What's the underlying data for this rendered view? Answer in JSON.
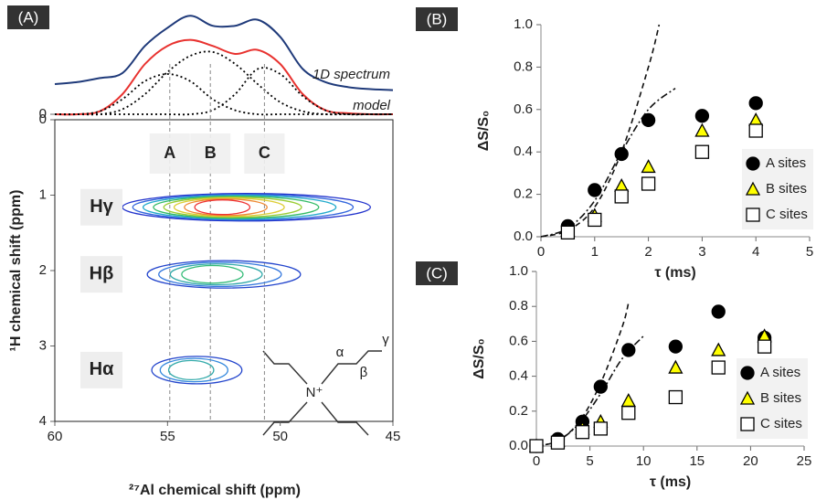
{
  "chart_data": [
    {
      "type": "contour",
      "panel_label": "(A)",
      "xlabel": "²⁷Al chemical shift (ppm)",
      "ylabel": "¹H chemical shift (ppm)",
      "xlim": [
        60,
        45
      ],
      "xticks": [
        60,
        55,
        50,
        45
      ],
      "ylim": [
        4,
        0
      ],
      "yticks": [
        0,
        1,
        2,
        3,
        4
      ],
      "projection": {
        "ylim": [
          0,
          1
        ],
        "yticks": [
          0
        ],
        "x": [
          60,
          59,
          58,
          57,
          56,
          55,
          54,
          53,
          52,
          51,
          50,
          49,
          48,
          47,
          46,
          45
        ],
        "series": [
          {
            "name": "1D spectrum",
            "color": "#1f3a7a",
            "style": "solid",
            "values": [
              0.3,
              0.32,
              0.36,
              0.41,
              0.68,
              0.86,
              0.98,
              0.88,
              0.88,
              0.94,
              0.77,
              0.45,
              0.32,
              0.27,
              0.25,
              0.24
            ]
          },
          {
            "name": "model",
            "color": "#e8322f",
            "style": "solid",
            "values": [
              0,
              0,
              0.03,
              0.2,
              0.5,
              0.68,
              0.74,
              0.68,
              0.6,
              0.64,
              0.5,
              0.2,
              0.04,
              0.01,
              0,
              0
            ]
          },
          {
            "color": "#000000",
            "style": "dotted",
            "values": [
              0,
              0,
              0.03,
              0.15,
              0.33,
              0.4,
              0.33,
              0.15,
              0.04,
              0,
              0,
              0,
              0,
              0,
              0,
              0
            ]
          },
          {
            "color": "#000000",
            "style": "dotted",
            "values": [
              0,
              0,
              0,
              0.05,
              0.2,
              0.42,
              0.58,
              0.62,
              0.5,
              0.3,
              0.12,
              0.03,
              0,
              0,
              0,
              0
            ]
          },
          {
            "color": "#000000",
            "style": "dotted",
            "values": [
              0,
              0,
              0,
              0,
              0,
              0,
              0,
              0.04,
              0.2,
              0.45,
              0.4,
              0.18,
              0.04,
              0,
              0,
              0
            ]
          }
        ]
      },
      "sites": [
        {
          "label": "A",
          "x": 54.9
        },
        {
          "label": "B",
          "x": 53.1
        },
        {
          "label": "C",
          "x": 50.7
        }
      ],
      "peaks": [
        {
          "label": "Hγ",
          "y": 1.16,
          "x_range": [
            57.0,
            46.0
          ],
          "colors": [
            "#2233cc",
            "#3366dd",
            "#22aacc",
            "#33bb66",
            "#99cc33",
            "#ddcc33",
            "#ee8833",
            "#ee3333"
          ]
        },
        {
          "label": "Hβ",
          "y": 2.05,
          "x_range": [
            55.9,
            49.1
          ],
          "colors": [
            "#2244cc",
            "#3377dd",
            "#33aaaa",
            "#33bb77"
          ]
        },
        {
          "label": "Hα",
          "y": 3.32,
          "x_range": [
            55.7,
            51.7
          ],
          "colors": [
            "#2244cc",
            "#3388dd",
            "#33aaaa"
          ]
        }
      ],
      "structure_labels": {
        "n": "N⁺",
        "alpha": "α",
        "beta": "β",
        "gamma": "γ"
      }
    },
    {
      "type": "scatter",
      "panel_label": "(B)",
      "xlabel": "τ (ms)",
      "ylabel": "ΔS/S₀",
      "xlim": [
        0,
        5
      ],
      "xticks": [
        0,
        1,
        2,
        3,
        4,
        5
      ],
      "ylim": [
        0,
        1
      ],
      "yticks": [
        {
          "value": 0,
          "label": "0.0"
        },
        0.2,
        0.4,
        0.6,
        0.8,
        {
          "value": 1,
          "label": "1.0"
        }
      ],
      "x": [
        0.5,
        1,
        1.5,
        2,
        3,
        4
      ],
      "series": [
        {
          "name": "A sites",
          "color": "#000000",
          "marker": "circle",
          "values": [
            0.05,
            0.22,
            0.39,
            0.55,
            0.57,
            0.63
          ]
        },
        {
          "name": "B sites",
          "color": "#ffff00",
          "marker": "triangle",
          "values": [
            0.03,
            0.1,
            0.24,
            0.33,
            0.5,
            0.55
          ]
        },
        {
          "name": "C sites",
          "color": "#ffffff",
          "marker": "square",
          "values": [
            0.02,
            0.08,
            0.19,
            0.25,
            0.4,
            0.5
          ]
        }
      ],
      "fits": [
        {
          "style": "dashed",
          "x": [
            0,
            0.5,
            1,
            1.5,
            2,
            2.2
          ],
          "values": [
            0,
            0.03,
            0.14,
            0.4,
            0.8,
            1.0
          ]
        },
        {
          "style": "dashdot",
          "x": [
            0,
            0.5,
            1,
            1.5,
            2,
            2.5
          ],
          "values": [
            0,
            0.04,
            0.17,
            0.4,
            0.6,
            0.7
          ]
        }
      ],
      "legend": "lower right"
    },
    {
      "type": "scatter",
      "panel_label": "(C)",
      "xlabel": "τ (ms)",
      "ylabel": "ΔS/S₀",
      "xlim": [
        0,
        25
      ],
      "xticks": [
        0,
        5,
        10,
        15,
        20,
        25
      ],
      "ylim": [
        0,
        1
      ],
      "yticks": [
        {
          "value": 0,
          "label": "0.0"
        },
        0.2,
        0.4,
        0.6,
        0.8,
        {
          "value": 1,
          "label": "1.0"
        }
      ],
      "x": [
        0,
        2,
        4.3,
        6,
        8.6,
        13,
        17,
        21.3
      ],
      "series": [
        {
          "name": "A sites",
          "color": "#000000",
          "marker": "circle",
          "values": [
            0,
            0.04,
            0.14,
            0.34,
            0.55,
            0.57,
            0.77,
            0.62
          ]
        },
        {
          "name": "B sites",
          "color": "#ffff00",
          "marker": "triangle",
          "values": [
            0,
            0.03,
            0.1,
            0.14,
            0.26,
            0.45,
            0.55,
            0.63
          ]
        },
        {
          "name": "C sites",
          "color": "#ffffff",
          "marker": "square",
          "values": [
            0,
            0.02,
            0.08,
            0.1,
            0.19,
            0.28,
            0.45,
            0.57
          ]
        }
      ],
      "fits": [
        {
          "style": "dashed",
          "x": [
            0,
            2,
            4,
            6,
            8,
            8.6
          ],
          "values": [
            0,
            0.03,
            0.14,
            0.36,
            0.68,
            0.82
          ]
        },
        {
          "style": "dashdot",
          "x": [
            0,
            2,
            4,
            6,
            8,
            10
          ],
          "values": [
            0,
            0.03,
            0.13,
            0.3,
            0.5,
            0.63
          ]
        }
      ],
      "legend": "lower right"
    }
  ]
}
